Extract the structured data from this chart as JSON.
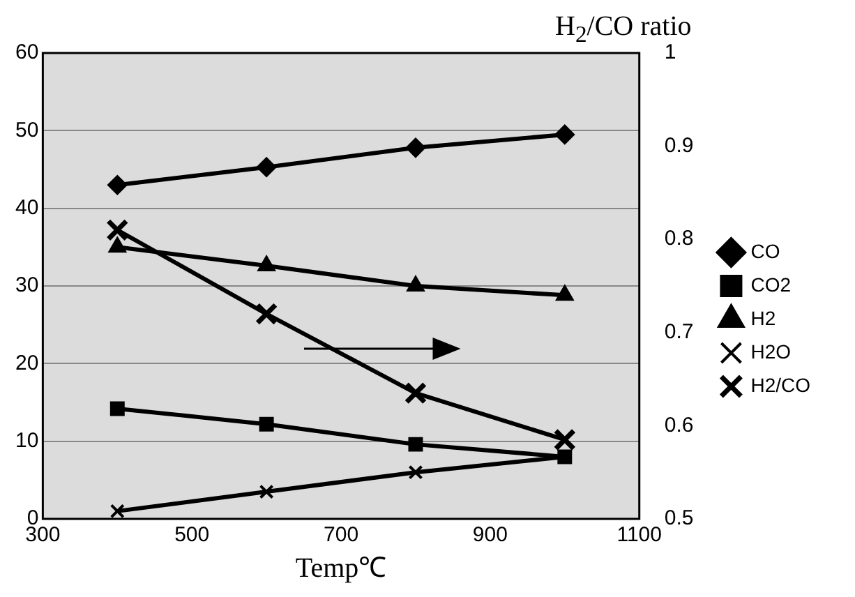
{
  "chart_data": {
    "type": "line",
    "xlabel": "Temp℃",
    "y2label": "H$_{2}$/CO ratio",
    "x": [
      400,
      600,
      800,
      1000
    ],
    "series": [
      {
        "name": "CO",
        "color": "#000000",
        "marker": "diamond",
        "values": [
          43,
          45.3,
          47.8,
          49.5
        ]
      },
      {
        "name": "CO2",
        "color": "#000000",
        "marker": "square",
        "values": [
          14.2,
          12.2,
          9.6,
          8
        ]
      },
      {
        "name": "H2",
        "color": "#000000",
        "marker": "triangle",
        "values": [
          35,
          32.6,
          30,
          28.8
        ]
      },
      {
        "name": "H2O",
        "color": "#000000",
        "marker": "cross",
        "values": [
          1,
          3.5,
          6,
          8
        ]
      },
      {
        "name": "H2/CO",
        "color": "#000000",
        "marker": "cross",
        "axis": "y2",
        "values": [
          0.81,
          0.72,
          0.635,
          0.585
        ]
      }
    ],
    "xlim": [
      300,
      1100
    ],
    "xticks": [
      300,
      500,
      700,
      900,
      1100
    ],
    "ylim": [
      0,
      60
    ],
    "yticks": [
      0,
      10,
      20,
      30,
      40,
      50,
      60
    ],
    "y2lim": [
      0.5,
      1
    ],
    "y2ticks": [
      0.5,
      0.6,
      0.7,
      0.8,
      0.9,
      1
    ],
    "grid": "y",
    "legend": "right"
  }
}
